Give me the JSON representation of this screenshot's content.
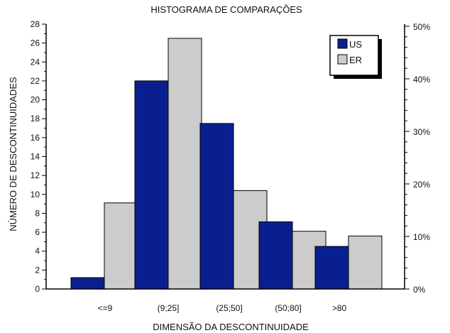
{
  "chart_data": {
    "type": "bar",
    "title": "HISTOGRAMA DE COMPARAÇÕES",
    "xlabel": "DIMENSÃO DA DESCONTINUIDADE",
    "ylabel": "NÚMERO DE DESCONTINUIDADES",
    "categories": [
      "<=9",
      "(9;25]",
      "(25;50]",
      "(50;80]",
      ">80"
    ],
    "series": [
      {
        "name": "US",
        "color": "#0a1f8f",
        "values": [
          1.2,
          22,
          17.5,
          7.1,
          4.5
        ]
      },
      {
        "name": "ER",
        "color": "#cccccc",
        "values": [
          9.1,
          26.5,
          10.4,
          6.1,
          5.6
        ]
      }
    ],
    "ylim": [
      0,
      28
    ],
    "yticks": [
      0,
      2,
      4,
      6,
      8,
      10,
      12,
      14,
      16,
      18,
      20,
      22,
      24,
      26,
      28
    ],
    "y2_ticks": [
      "0%",
      "10%",
      "20%",
      "30%",
      "40%",
      "50%"
    ],
    "legend_position": "top-right",
    "grid": false
  }
}
